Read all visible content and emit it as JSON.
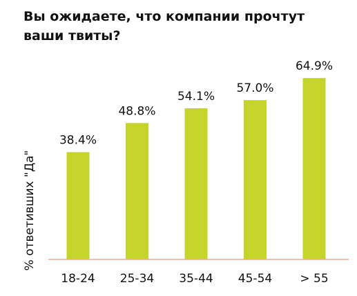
{
  "chart_data": {
    "type": "bar",
    "title": "Вы ожидаете, что компании прочтут ваши твиты?",
    "xlabel": "",
    "ylabel": "% ответивших \"Да\"",
    "categories": [
      "18-24",
      "25-34",
      "35-44",
      "45-54",
      "> 55"
    ],
    "values": [
      38.4,
      48.8,
      54.1,
      57.0,
      64.9
    ],
    "data_labels": [
      "38.4%",
      "48.8%",
      "54.1%",
      "57.0%",
      "64.9%"
    ],
    "ylim": [
      0,
      70
    ],
    "grid": false,
    "legend": "none",
    "bar_color": "#c4d42a",
    "baseline_color": "#f0a89a"
  }
}
